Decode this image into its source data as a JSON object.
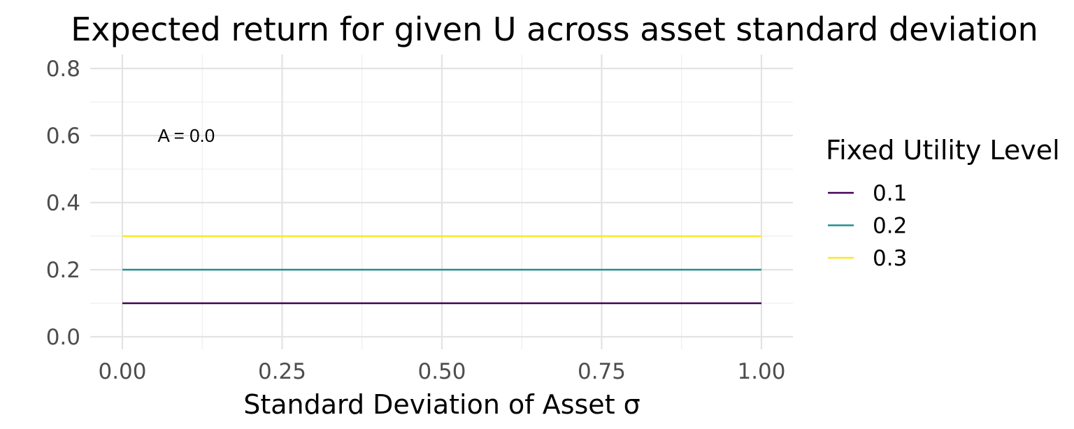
{
  "chart_data": {
    "type": "line",
    "title": "Expected return for given U across asset standard deviation",
    "xlabel": "Standard Deviation of Asset σ",
    "ylabel": "",
    "xlim": [
      0,
      1
    ],
    "ylim": [
      0,
      0.8
    ],
    "x_ticks": [
      "0.00",
      "0.25",
      "0.50",
      "0.75",
      "1.00"
    ],
    "y_ticks": [
      "0.0",
      "0.2",
      "0.4",
      "0.6",
      "0.8"
    ],
    "grid": true,
    "legend": {
      "title": "Fixed Utility Level",
      "position": "right"
    },
    "annotation": {
      "text": "A = 0.0",
      "x": 0.1,
      "y": 0.6
    },
    "series": [
      {
        "name": "0.1",
        "color": "#440154",
        "x": [
          0,
          1
        ],
        "y": [
          0.1,
          0.1
        ]
      },
      {
        "name": "0.2",
        "color": "#21908C",
        "x": [
          0,
          1
        ],
        "y": [
          0.2,
          0.2
        ]
      },
      {
        "name": "0.3",
        "color": "#FDE725",
        "x": [
          0,
          1
        ],
        "y": [
          0.3,
          0.3
        ]
      }
    ]
  }
}
